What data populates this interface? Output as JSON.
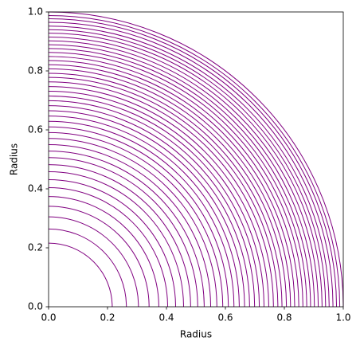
{
  "chart_data": {
    "type": "arc",
    "xlabel": "Radius",
    "ylabel": "Radius",
    "series": [
      {
        "color": "#800080",
        "values": [
          0.216,
          0.264,
          0.305,
          0.341,
          0.374,
          0.404,
          0.431,
          0.458,
          0.482,
          0.506,
          0.528,
          0.55,
          0.571,
          0.591,
          0.61,
          0.629,
          0.647,
          0.665,
          0.682,
          0.699,
          0.715,
          0.731,
          0.747,
          0.763,
          0.778,
          0.792,
          0.807,
          0.821,
          0.835,
          0.849,
          0.863,
          0.876,
          0.889,
          0.902,
          0.915,
          0.928,
          0.94,
          0.952,
          0.965,
          0.977,
          0.988,
          1.0
        ]
      }
    ],
    "xlim": [
      0,
      1
    ],
    "ylim": [
      0,
      1
    ],
    "xticks": [
      {
        "value": 0,
        "label": "0.0"
      },
      {
        "value": 0.2,
        "label": "0.2"
      },
      {
        "value": 0.4,
        "label": "0.4"
      },
      {
        "value": 0.6,
        "label": "0.6"
      },
      {
        "value": 0.8,
        "label": "0.8"
      },
      {
        "value": 1,
        "label": "1.0"
      }
    ],
    "yticks": [
      {
        "value": 0,
        "label": "0.0"
      },
      {
        "value": 0.2,
        "label": "0.2"
      },
      {
        "value": 0.4,
        "label": "0.4"
      },
      {
        "value": 0.6,
        "label": "0.6"
      },
      {
        "value": 0.8,
        "label": "0.8"
      },
      {
        "value": 1,
        "label": "1.0"
      }
    ]
  }
}
